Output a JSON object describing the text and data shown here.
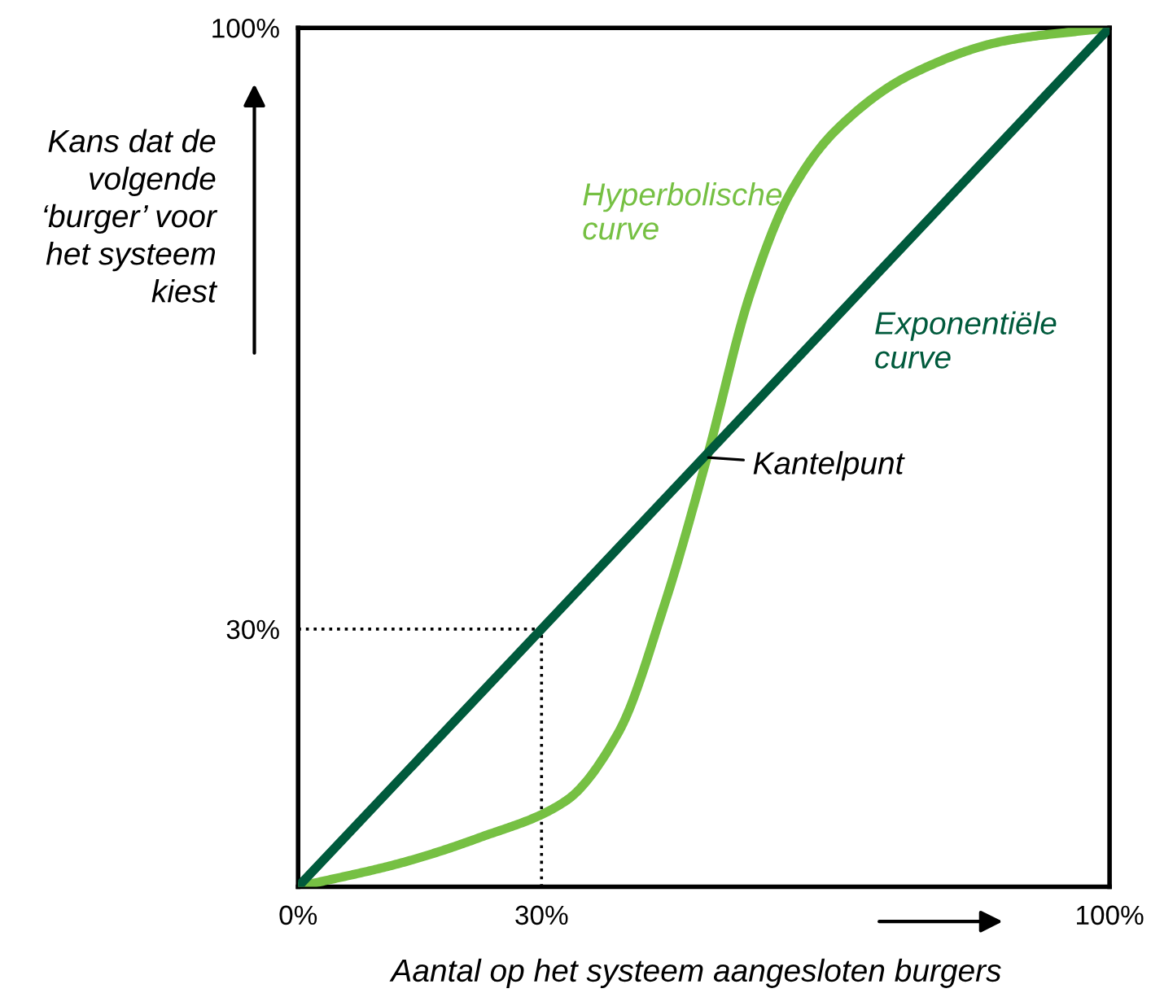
{
  "chart_data": {
    "type": "line",
    "xlabel": "Aantal op het systeem aangesloten burgers",
    "ylabel": "Kans dat de\nvolgende\n‘burger’ voor\nhet systeem\nkiest",
    "xlim": [
      0,
      100
    ],
    "ylim": [
      0,
      100
    ],
    "xticks": [
      {
        "value": 0,
        "label": "0%"
      },
      {
        "value": 30,
        "label": "30%"
      },
      {
        "value": 100,
        "label": "100%"
      }
    ],
    "yticks": [
      {
        "value": 30,
        "label": "30%"
      },
      {
        "value": 100,
        "label": "100%"
      }
    ],
    "grid": false,
    "legend": false,
    "marker": "none",
    "series": [
      {
        "name": "Hyperbolische\ncurve",
        "color": "#76c043",
        "x": [
          0,
          12.8,
          22.3,
          33,
          39.5,
          45.2,
          50.4,
          55.7,
          60.5,
          66.2,
          75.8,
          87.2,
          100
        ],
        "values": [
          0,
          2.8,
          5.7,
          10,
          18,
          33,
          50,
          69,
          80.5,
          88,
          94.7,
          98.5,
          100
        ]
      },
      {
        "name": "Exponentiële\ncurve",
        "color": "#005a3c",
        "x": [
          0,
          100
        ],
        "values": [
          0,
          100
        ]
      },
      {
        "color": "#000000",
        "line_style": "dotted",
        "x": [
          0,
          30,
          30
        ],
        "values": [
          30,
          30,
          0
        ]
      }
    ],
    "annotations": [
      {
        "text": "Kantelpunt",
        "x": 50,
        "y": 50
      }
    ]
  }
}
